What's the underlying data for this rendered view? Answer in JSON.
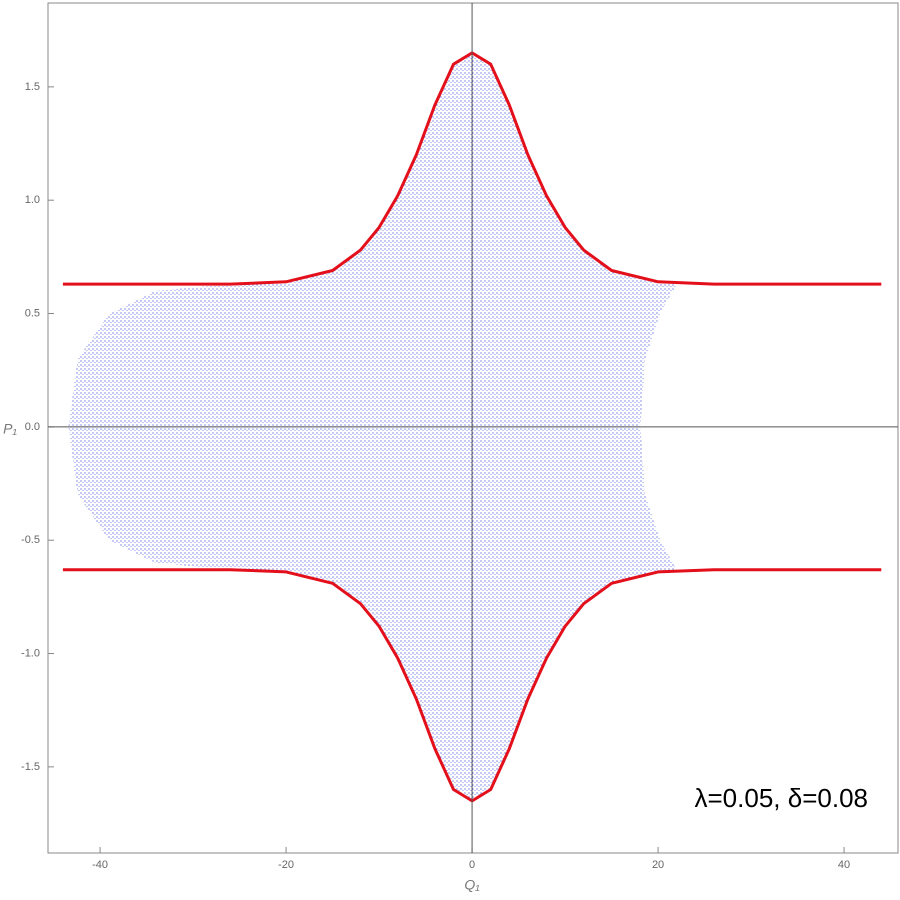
{
  "chart_data": {
    "type": "line",
    "xlabel": "Q₁",
    "ylabel": "P₁",
    "annotation": "λ=0.05, δ=0.08",
    "xlim": [
      -45.6,
      45.8
    ],
    "ylim": [
      -1.88,
      1.87
    ],
    "xticks": [
      -40,
      -20,
      0,
      20,
      40
    ],
    "yticks": [
      {
        "value": -1.5,
        "label": "-1.5"
      },
      {
        "value": -1,
        "label": "-1.0"
      },
      -0.5,
      {
        "value": 0,
        "label": "0.0"
      },
      0.5,
      {
        "value": 1,
        "label": "1.0"
      },
      1.5
    ],
    "series": [
      {
        "color": "#3344dd",
        "fill": true,
        "x": [
          -43.4,
          -42.4,
          -39,
          -34,
          -26,
          -20,
          -15,
          -12,
          -10,
          -8,
          -6,
          -4,
          -2,
          0,
          2,
          4,
          6,
          8,
          10,
          12,
          15,
          20,
          22,
          20.2,
          18.6,
          18.1,
          18.6,
          20.2,
          22,
          20,
          15,
          12,
          10,
          8,
          6,
          4,
          2,
          0,
          -2,
          -4,
          -6,
          -8,
          -10,
          -12,
          -15,
          -20,
          -26,
          -34,
          -39,
          -42.4
        ],
        "y": [
          0,
          0.3,
          0.5,
          0.6,
          0.63,
          0.64,
          0.69,
          0.78,
          0.88,
          1.02,
          1.2,
          1.42,
          1.6,
          1.65,
          1.6,
          1.42,
          1.2,
          1.02,
          0.88,
          0.78,
          0.69,
          0.64,
          0.63,
          0.5,
          0.3,
          0,
          -0.3,
          -0.5,
          -0.63,
          -0.64,
          -0.69,
          -0.78,
          -0.88,
          -1.02,
          -1.2,
          -1.42,
          -1.6,
          -1.65,
          -1.6,
          -1.42,
          -1.2,
          -1.02,
          -0.88,
          -0.78,
          -0.69,
          -0.64,
          -0.63,
          -0.6,
          -0.5,
          -0.3
        ]
      },
      {
        "color": "#e3101c",
        "fill": false,
        "x": [
          -44,
          -26,
          -20,
          -15,
          -12,
          -10,
          -8,
          -6,
          -4,
          -2,
          0,
          2,
          4,
          6,
          8,
          10,
          12,
          15,
          20,
          26,
          44
        ],
        "y": [
          0.63,
          0.63,
          0.64,
          0.69,
          0.78,
          0.88,
          1.02,
          1.2,
          1.42,
          1.6,
          1.65,
          1.6,
          1.42,
          1.2,
          1.02,
          0.88,
          0.78,
          0.69,
          0.64,
          0.63,
          0.63
        ]
      },
      {
        "color": "#e3101c",
        "fill": false,
        "x": [
          -44,
          -26,
          -20,
          -15,
          -12,
          -10,
          -8,
          -6,
          -4,
          -2,
          0,
          2,
          4,
          6,
          8,
          10,
          12,
          15,
          20,
          26,
          44
        ],
        "y": [
          -0.63,
          -0.63,
          -0.64,
          -0.69,
          -0.78,
          -0.88,
          -1.02,
          -1.2,
          -1.42,
          -1.6,
          -1.65,
          -1.6,
          -1.42,
          -1.2,
          -1.02,
          -0.88,
          -0.78,
          -0.69,
          -0.64,
          -0.63,
          -0.63
        ]
      }
    ]
  }
}
